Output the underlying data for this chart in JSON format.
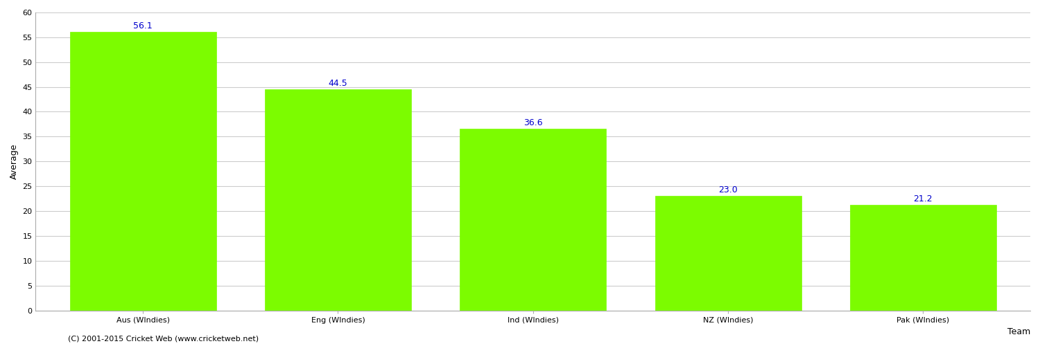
{
  "categories": [
    "Aus (WIndies)",
    "Eng (WIndies)",
    "Ind (WIndies)",
    "NZ (WIndies)",
    "Pak (WIndies)"
  ],
  "values": [
    56.1,
    44.5,
    36.6,
    23.0,
    21.2
  ],
  "bar_color": "#7CFC00",
  "bar_edge_color": "#7CFC00",
  "value_label_color": "#0000CC",
  "value_label_fontsize": 9,
  "xlabel": "Team",
  "ylabel": "Average",
  "ylim": [
    0,
    60
  ],
  "yticks": [
    0,
    5,
    10,
    15,
    20,
    25,
    30,
    35,
    40,
    45,
    50,
    55,
    60
  ],
  "grid_color": "#cccccc",
  "background_color": "#ffffff",
  "footnote": "(C) 2001-2015 Cricket Web (www.cricketweb.net)",
  "xlabel_fontsize": 9,
  "ylabel_fontsize": 9,
  "xtick_fontsize": 8,
  "ytick_fontsize": 8,
  "footnote_fontsize": 8,
  "bar_width": 0.75
}
